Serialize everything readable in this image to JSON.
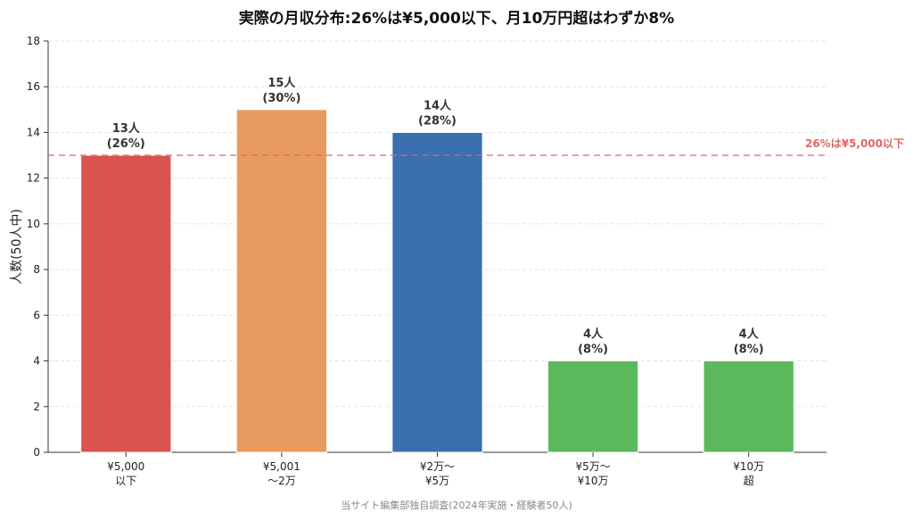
{
  "chart_data": {
    "type": "bar",
    "title": "実際の月収分布:26%は¥5,000以下、月10万円超はわずか8%",
    "ylabel": "人数(50人中)",
    "xlabel": "",
    "ylim": [
      0,
      18
    ],
    "yticks": [
      0,
      2,
      4,
      6,
      8,
      10,
      12,
      14,
      16,
      18
    ],
    "grid": true,
    "categories": [
      [
        "¥5,000",
        "以下"
      ],
      [
        "¥5,001",
        "〜2万"
      ],
      [
        "¥2万〜",
        "¥5万"
      ],
      [
        "¥5万〜",
        "¥10万"
      ],
      [
        "¥10万",
        "超"
      ]
    ],
    "values": [
      13,
      15,
      14,
      4,
      4
    ],
    "value_labels": [
      "13人",
      "15人",
      "14人",
      "4人",
      "4人"
    ],
    "percent_labels": [
      "(26%)",
      "(30%)",
      "(28%)",
      "(8%)",
      "(8%)"
    ],
    "colors": [
      "#d9534f",
      "#e89b5e",
      "#3a6fb0",
      "#5cb85c",
      "#5cb85c"
    ],
    "reference_line": {
      "value": 13,
      "label": "26%は¥5,000以下",
      "color": "#e06666"
    },
    "source_note": "当サイト編集部独自調査(2024年実施・経験者50人)"
  }
}
